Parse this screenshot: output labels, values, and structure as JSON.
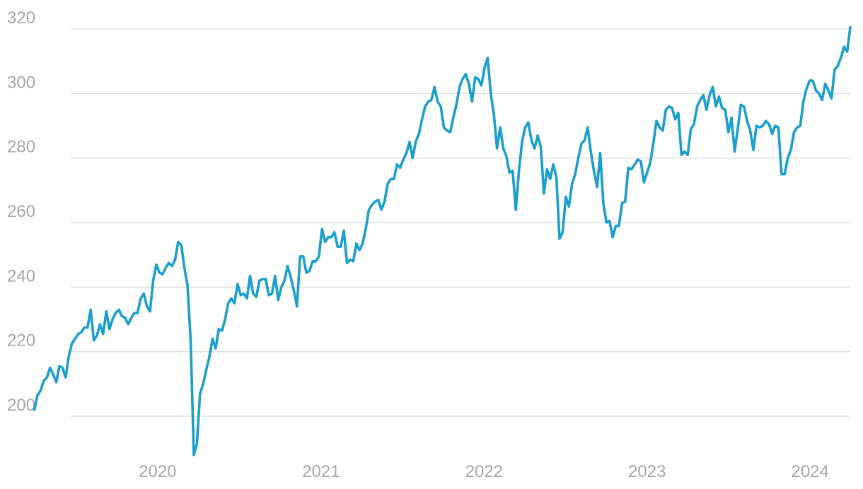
{
  "chart_data": {
    "type": "line",
    "title": "",
    "xlabel": "",
    "ylabel": "",
    "ylim": [
      184,
      320
    ],
    "xlim": [
      "2019-01-13",
      "2024-03-31"
    ],
    "grid": true,
    "legend": "none",
    "y_ticks": [
      200,
      220,
      240,
      260,
      280,
      300,
      320
    ],
    "x_ticks": [
      {
        "label": "2020",
        "date": "2020-01-01"
      },
      {
        "label": "2021",
        "date": "2021-01-01"
      },
      {
        "label": "2022",
        "date": "2022-01-01"
      },
      {
        "label": "2023",
        "date": "2023-01-01"
      },
      {
        "label": "2024",
        "date": "2024-01-01"
      }
    ],
    "colors": {
      "line": "#1b9fcb",
      "grid": "#dcdcdc",
      "tick_text": "#a7a7a7"
    },
    "series": [
      {
        "points": [
          [
            "2019-03-31",
            202
          ],
          [
            "2019-04-07",
            206.5
          ],
          [
            "2019-04-14",
            208
          ],
          [
            "2019-04-21",
            211
          ],
          [
            "2019-04-28",
            212
          ],
          [
            "2019-05-05",
            215
          ],
          [
            "2019-05-12",
            213
          ],
          [
            "2019-05-19",
            210.5
          ],
          [
            "2019-05-26",
            215.5
          ],
          [
            "2019-06-02",
            215
          ],
          [
            "2019-06-09",
            212
          ],
          [
            "2019-06-16",
            218.5
          ],
          [
            "2019-06-23",
            222.5
          ],
          [
            "2019-06-30",
            224
          ],
          [
            "2019-07-07",
            225.5
          ],
          [
            "2019-07-14",
            226
          ],
          [
            "2019-07-21",
            227.5
          ],
          [
            "2019-07-28",
            227.5
          ],
          [
            "2019-08-04",
            233
          ],
          [
            "2019-08-11",
            223.5
          ],
          [
            "2019-08-18",
            225
          ],
          [
            "2019-08-25",
            228.5
          ],
          [
            "2019-09-01",
            225.5
          ],
          [
            "2019-09-08",
            232.5
          ],
          [
            "2019-09-15",
            227
          ],
          [
            "2019-09-22",
            230
          ],
          [
            "2019-09-29",
            232
          ],
          [
            "2019-10-06",
            233
          ],
          [
            "2019-10-13",
            231
          ],
          [
            "2019-10-20",
            230.5
          ],
          [
            "2019-10-27",
            228.5
          ],
          [
            "2019-11-03",
            230.5
          ],
          [
            "2019-11-10",
            232
          ],
          [
            "2019-11-17",
            232
          ],
          [
            "2019-11-24",
            236.5
          ],
          [
            "2019-12-01",
            238
          ],
          [
            "2019-12-08",
            234
          ],
          [
            "2019-12-15",
            232.5
          ],
          [
            "2019-12-22",
            242
          ],
          [
            "2019-12-29",
            247
          ],
          [
            "2020-01-05",
            244.5
          ],
          [
            "2020-01-12",
            244
          ],
          [
            "2020-01-19",
            246
          ],
          [
            "2020-01-26",
            247.5
          ],
          [
            "2020-02-02",
            246.5
          ],
          [
            "2020-02-09",
            248.5
          ],
          [
            "2020-02-16",
            254
          ],
          [
            "2020-02-23",
            253
          ],
          [
            "2020-03-01",
            246
          ],
          [
            "2020-03-08",
            240.5
          ],
          [
            "2020-03-15",
            223
          ],
          [
            "2020-03-22",
            188
          ],
          [
            "2020-03-29",
            191.5
          ],
          [
            "2020-04-05",
            207
          ],
          [
            "2020-04-12",
            210
          ],
          [
            "2020-04-19",
            214.5
          ],
          [
            "2020-04-26",
            218.5
          ],
          [
            "2020-05-03",
            224
          ],
          [
            "2020-05-10",
            221
          ],
          [
            "2020-05-17",
            227
          ],
          [
            "2020-05-24",
            226.5
          ],
          [
            "2020-05-31",
            230
          ],
          [
            "2020-06-07",
            235
          ],
          [
            "2020-06-14",
            236.5
          ],
          [
            "2020-06-21",
            235
          ],
          [
            "2020-06-28",
            241
          ],
          [
            "2020-07-05",
            237.5
          ],
          [
            "2020-07-12",
            238
          ],
          [
            "2020-07-19",
            236.5
          ],
          [
            "2020-07-26",
            243.5
          ],
          [
            "2020-08-02",
            238
          ],
          [
            "2020-08-09",
            237
          ],
          [
            "2020-08-16",
            242
          ],
          [
            "2020-08-23",
            242.5
          ],
          [
            "2020-08-30",
            242.5
          ],
          [
            "2020-09-06",
            237.5
          ],
          [
            "2020-09-13",
            238
          ],
          [
            "2020-09-20",
            243.5
          ],
          [
            "2020-09-27",
            236
          ],
          [
            "2020-10-04",
            240
          ],
          [
            "2020-10-11",
            242
          ],
          [
            "2020-10-18",
            246.5
          ],
          [
            "2020-10-25",
            243
          ],
          [
            "2020-11-01",
            239
          ],
          [
            "2020-11-08",
            234
          ],
          [
            "2020-11-15",
            249.5
          ],
          [
            "2020-11-22",
            249.5
          ],
          [
            "2020-11-29",
            244.5
          ],
          [
            "2020-12-06",
            245
          ],
          [
            "2020-12-13",
            248
          ],
          [
            "2020-12-20",
            248
          ],
          [
            "2020-12-27",
            249.5
          ],
          [
            "2021-01-03",
            258
          ],
          [
            "2021-01-10",
            254
          ],
          [
            "2021-01-17",
            255.5
          ],
          [
            "2021-01-24",
            255.5
          ],
          [
            "2021-01-31",
            257
          ],
          [
            "2021-02-07",
            252.5
          ],
          [
            "2021-02-14",
            252.5
          ],
          [
            "2021-02-21",
            257.5
          ],
          [
            "2021-02-28",
            247.5
          ],
          [
            "2021-03-07",
            248.5
          ],
          [
            "2021-03-14",
            248
          ],
          [
            "2021-03-21",
            253.5
          ],
          [
            "2021-03-28",
            251.5
          ],
          [
            "2021-04-04",
            253.5
          ],
          [
            "2021-04-11",
            258
          ],
          [
            "2021-04-18",
            264
          ],
          [
            "2021-04-25",
            265.5
          ],
          [
            "2021-05-02",
            266.5
          ],
          [
            "2021-05-09",
            267
          ],
          [
            "2021-05-16",
            264
          ],
          [
            "2021-05-23",
            266.5
          ],
          [
            "2021-05-30",
            272
          ],
          [
            "2021-06-06",
            273.5
          ],
          [
            "2021-06-13",
            273.5
          ],
          [
            "2021-06-20",
            278
          ],
          [
            "2021-06-27",
            277
          ],
          [
            "2021-07-04",
            279.5
          ],
          [
            "2021-07-11",
            281.5
          ],
          [
            "2021-07-18",
            285
          ],
          [
            "2021-07-25",
            280
          ],
          [
            "2021-08-01",
            285
          ],
          [
            "2021-08-08",
            287.5
          ],
          [
            "2021-08-15",
            292
          ],
          [
            "2021-08-22",
            296
          ],
          [
            "2021-08-29",
            297.5
          ],
          [
            "2021-09-05",
            298
          ],
          [
            "2021-09-12",
            302
          ],
          [
            "2021-09-19",
            297.5
          ],
          [
            "2021-09-26",
            296
          ],
          [
            "2021-10-03",
            289.5
          ],
          [
            "2021-10-10",
            288.5
          ],
          [
            "2021-10-17",
            288
          ],
          [
            "2021-10-24",
            292.5
          ],
          [
            "2021-10-31",
            296.5
          ],
          [
            "2021-11-07",
            302
          ],
          [
            "2021-11-14",
            304.5
          ],
          [
            "2021-11-21",
            306
          ],
          [
            "2021-11-28",
            303
          ],
          [
            "2021-12-05",
            297.5
          ],
          [
            "2021-12-12",
            305
          ],
          [
            "2021-12-19",
            304.5
          ],
          [
            "2021-12-26",
            302.5
          ],
          [
            "2022-01-02",
            308
          ],
          [
            "2022-01-09",
            311
          ],
          [
            "2022-01-16",
            300
          ],
          [
            "2022-01-23",
            293.5
          ],
          [
            "2022-01-30",
            283
          ],
          [
            "2022-02-06",
            289.5
          ],
          [
            "2022-02-13",
            283
          ],
          [
            "2022-02-20",
            280.5
          ],
          [
            "2022-02-27",
            275.5
          ],
          [
            "2022-03-06",
            276
          ],
          [
            "2022-03-13",
            264
          ],
          [
            "2022-03-20",
            276
          ],
          [
            "2022-03-27",
            285
          ],
          [
            "2022-04-03",
            289.5
          ],
          [
            "2022-04-10",
            291
          ],
          [
            "2022-04-17",
            285.5
          ],
          [
            "2022-04-24",
            283
          ],
          [
            "2022-05-01",
            287
          ],
          [
            "2022-05-08",
            283.5
          ],
          [
            "2022-05-15",
            269
          ],
          [
            "2022-05-22",
            276.5
          ],
          [
            "2022-05-29",
            273.5
          ],
          [
            "2022-06-05",
            278
          ],
          [
            "2022-06-12",
            274
          ],
          [
            "2022-06-19",
            255
          ],
          [
            "2022-06-26",
            257
          ],
          [
            "2022-07-03",
            268
          ],
          [
            "2022-07-10",
            265
          ],
          [
            "2022-07-17",
            272
          ],
          [
            "2022-07-24",
            275
          ],
          [
            "2022-07-31",
            280
          ],
          [
            "2022-08-07",
            284.5
          ],
          [
            "2022-08-14",
            285.5
          ],
          [
            "2022-08-21",
            289.5
          ],
          [
            "2022-08-28",
            282
          ],
          [
            "2022-09-04",
            276
          ],
          [
            "2022-09-11",
            271
          ],
          [
            "2022-09-18",
            281.5
          ],
          [
            "2022-09-25",
            266
          ],
          [
            "2022-10-02",
            260
          ],
          [
            "2022-10-09",
            260.5
          ],
          [
            "2022-10-16",
            255.5
          ],
          [
            "2022-10-23",
            259
          ],
          [
            "2022-10-30",
            259
          ],
          [
            "2022-11-06",
            266
          ],
          [
            "2022-11-13",
            266.5
          ],
          [
            "2022-11-20",
            277
          ],
          [
            "2022-11-27",
            276.5
          ],
          [
            "2022-12-04",
            278
          ],
          [
            "2022-12-11",
            279.5
          ],
          [
            "2022-12-18",
            279
          ],
          [
            "2022-12-25",
            272.5
          ],
          [
            "2023-01-01",
            275.5
          ],
          [
            "2023-01-08",
            278.5
          ],
          [
            "2023-01-15",
            284.5
          ],
          [
            "2023-01-22",
            291.5
          ],
          [
            "2023-01-29",
            289.5
          ],
          [
            "2023-02-05",
            288.5
          ],
          [
            "2023-02-12",
            295
          ],
          [
            "2023-02-19",
            296
          ],
          [
            "2023-02-26",
            295.5
          ],
          [
            "2023-03-05",
            292
          ],
          [
            "2023-03-12",
            294
          ],
          [
            "2023-03-19",
            281
          ],
          [
            "2023-03-26",
            282
          ],
          [
            "2023-04-02",
            281
          ],
          [
            "2023-04-09",
            289
          ],
          [
            "2023-04-16",
            290.5
          ],
          [
            "2023-04-23",
            296
          ],
          [
            "2023-04-30",
            298
          ],
          [
            "2023-05-07",
            299.5
          ],
          [
            "2023-05-14",
            295
          ],
          [
            "2023-05-21",
            299.5
          ],
          [
            "2023-05-28",
            302
          ],
          [
            "2023-06-04",
            296
          ],
          [
            "2023-06-11",
            299
          ],
          [
            "2023-06-18",
            295.5
          ],
          [
            "2023-06-25",
            295
          ],
          [
            "2023-07-02",
            288
          ],
          [
            "2023-07-09",
            292.5
          ],
          [
            "2023-07-16",
            282
          ],
          [
            "2023-07-23",
            289
          ],
          [
            "2023-07-30",
            296.5
          ],
          [
            "2023-08-06",
            296
          ],
          [
            "2023-08-13",
            291.5
          ],
          [
            "2023-08-20",
            288.5
          ],
          [
            "2023-08-27",
            282.5
          ],
          [
            "2023-09-03",
            290
          ],
          [
            "2023-09-10",
            289.5
          ],
          [
            "2023-09-17",
            290
          ],
          [
            "2023-09-24",
            291.5
          ],
          [
            "2023-10-01",
            290.5
          ],
          [
            "2023-10-08",
            287.5
          ],
          [
            "2023-10-15",
            290
          ],
          [
            "2023-10-22",
            289.5
          ],
          [
            "2023-10-29",
            275
          ],
          [
            "2023-11-05",
            275
          ],
          [
            "2023-11-12",
            280
          ],
          [
            "2023-11-19",
            282.5
          ],
          [
            "2023-11-26",
            288
          ],
          [
            "2023-12-03",
            289.5
          ],
          [
            "2023-12-10",
            290
          ],
          [
            "2023-12-17",
            297.5
          ],
          [
            "2023-12-24",
            301.5
          ],
          [
            "2023-12-31",
            304
          ],
          [
            "2024-01-07",
            304
          ],
          [
            "2024-01-14",
            301
          ],
          [
            "2024-01-21",
            300
          ],
          [
            "2024-01-28",
            298
          ],
          [
            "2024-02-04",
            303
          ],
          [
            "2024-02-11",
            301
          ],
          [
            "2024-02-18",
            298.5
          ],
          [
            "2024-02-25",
            307.5
          ],
          [
            "2024-03-03",
            308.5
          ],
          [
            "2024-03-10",
            311
          ],
          [
            "2024-03-17",
            314.5
          ],
          [
            "2024-03-24",
            313
          ],
          [
            "2024-03-31",
            320.5
          ]
        ]
      }
    ]
  }
}
